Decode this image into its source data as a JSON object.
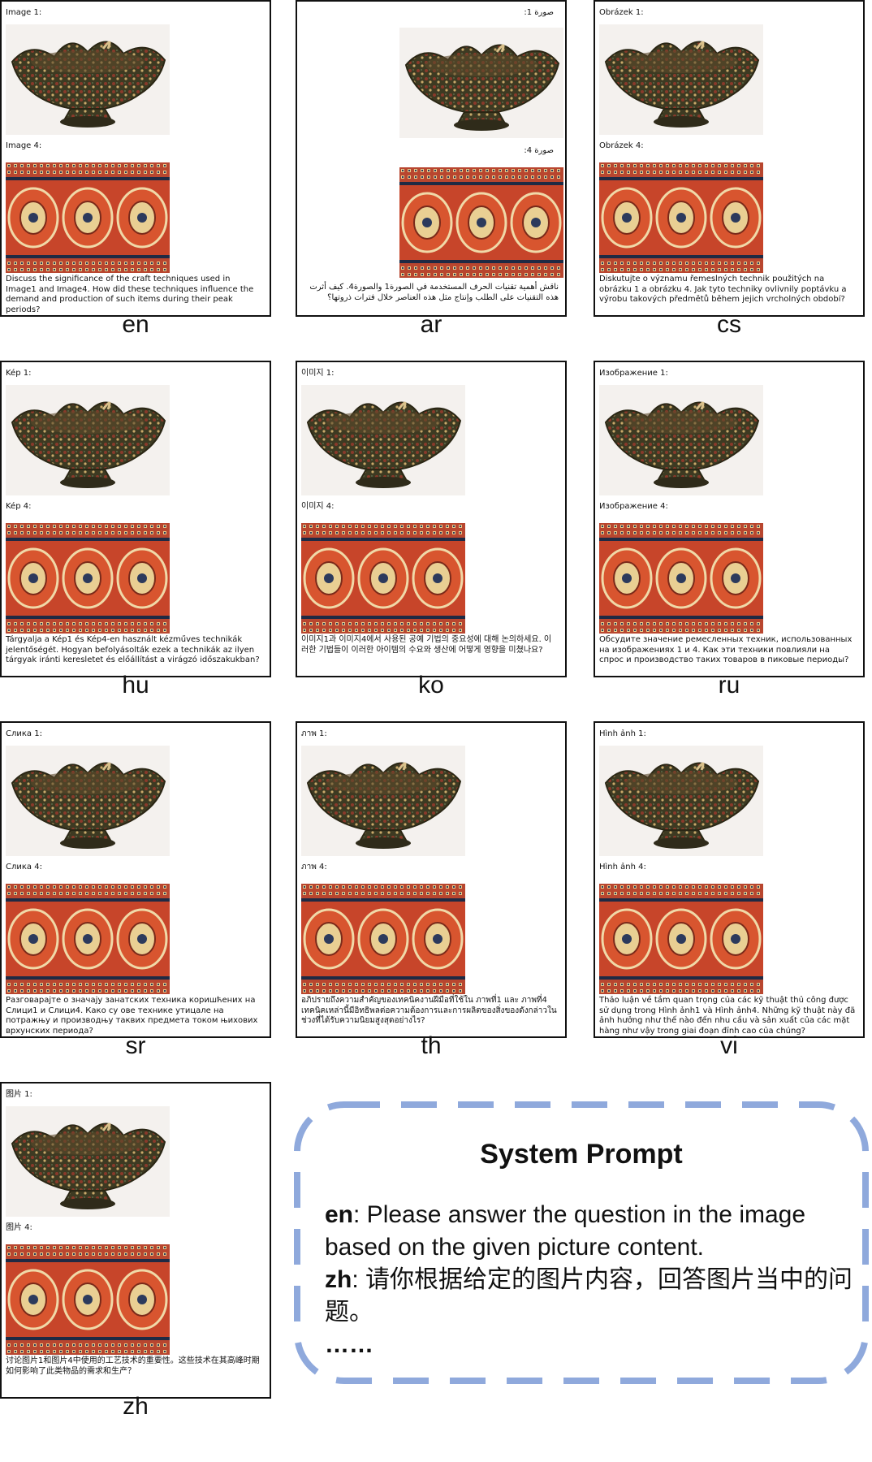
{
  "panels": [
    {
      "lang": "en",
      "label1": "Image 1:",
      "label2": "Image 4:",
      "question": "Discuss the significance of the craft techniques used in Image1 and Image4. How did these techniques influence the demand and production of such items during their peak periods?",
      "rtl": false
    },
    {
      "lang": "ar",
      "label1": "صورة 1:",
      "label2": "صورة 4:",
      "question": "ناقش أهمية تقنيات الحرف المستخدمة في الصورة1 والصورة4. كيف أثرت هذه التقنيات على الطلب وإنتاج مثل هذه العناصر خلال فترات ذروتها؟",
      "rtl": true
    },
    {
      "lang": "cs",
      "label1": "Obrázek 1:",
      "label2": "Obrázek 4:",
      "question": "Diskutujte o významu řemeslných technik použitých na obrázku 1 a obrázku 4. Jak tyto techniky ovlivnily poptávku a výrobu takových předmětů během jejich vrcholných období?",
      "rtl": false
    },
    {
      "lang": "hu",
      "label1": "Kép 1:",
      "label2": "Kép 4:",
      "question": "Tárgyalja a Kép1 és Kép4-en használt kézműves technikák jelentőségét. Hogyan befolyásolták ezek a technikák az ilyen tárgyak iránti keresletet és előállítást a virágzó időszakukban?",
      "rtl": false
    },
    {
      "lang": "ko",
      "label1": "이미지 1:",
      "label2": "이미지 4:",
      "question": "이미지1과 이미지4에서 사용된 공예 기법의 중요성에 대해 논의하세요. 이러한 기법들이 이러한 아이템의 수요와 생산에 어떻게 영향을 미쳤나요?",
      "rtl": false
    },
    {
      "lang": "ru",
      "label1": "Изображение 1:",
      "label2": "Изображение 4:",
      "question": "Обсудите значение ремесленных техник, использованных на изображениях 1 и 4. Как эти техники повлияли на спрос и производство таких товаров в пиковые периоды?",
      "rtl": false
    },
    {
      "lang": "sr",
      "label1": "Слика 1:",
      "label2": "Слика 4:",
      "question": "Разговарајте о значају занатских техника коришћених на Слици1 и Слици4. Како су ове технике утицале на потражњу и производњу таквих предмета током њихових врхунских периода?",
      "rtl": false
    },
    {
      "lang": "th",
      "label1": "ภาพ 1:",
      "label2": "ภาพ 4:",
      "question": "อภิปรายถึงความสำคัญของเทคนิคงานฝีมือที่ใช้ใน ภาพที่1 และ ภาพที่4 เทคนิคเหล่านี้มีอิทธิพลต่อความต้องการและการผลิตของสิ่งของดังกล่าวในช่วงที่ได้รับความนิยมสูงสุดอย่างไร?",
      "rtl": false
    },
    {
      "lang": "vi",
      "label1": "Hình ảnh 1:",
      "label2": "Hình ảnh 4:",
      "question": "Thảo luận về tầm quan trọng của các kỹ thuật thủ công được sử dụng trong Hình ảnh1 và Hình ảnh4. Những kỹ thuật này đã ảnh hưởng như thế nào đến nhu cầu và sản xuất của các mặt hàng như vậy trong giai đoạn đỉnh cao của chúng?",
      "rtl": false
    },
    {
      "lang": "zh",
      "label1": "图片 1:",
      "label2": "图片 4:",
      "question": "讨论图片1和图片4中使用的工艺技术的重要性。这些技术在其高峰时期如何影响了此类物品的需求和生产？",
      "rtl": false
    }
  ],
  "system_prompt": {
    "title": "System Prompt",
    "en_key": "en",
    "en_text": ": Please answer the question in the image based on the given picture content.",
    "zh_key": "zh",
    "zh_text": ": 请你根据给定的图片内容，回答图片当中的问题。",
    "ellipsis": "……",
    "border_color": "#8fa9dc"
  }
}
